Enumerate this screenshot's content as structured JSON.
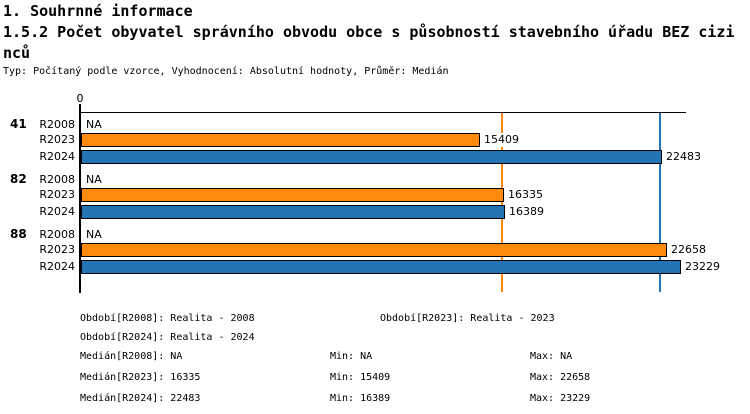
{
  "header": {
    "section_title": "1. Souhrnné informace",
    "indicator_title": "1.5.2 Počet obyvatel správního obvodu obce s působností stavebního úřadu BEZ cizinců",
    "meta": "Typ: Počítaný podle vzorce, Vyhodnocení: Absolutní hodnoty, Průměr: Medián"
  },
  "colors": {
    "orange": "#FF8A0E",
    "blue": "#2274B5",
    "axis": "#000000"
  },
  "chart_data": {
    "type": "bar",
    "orientation": "horizontal",
    "value_axis": {
      "zero_label": "0",
      "min": 0
    },
    "series_labels": [
      "R2008",
      "R2023",
      "R2024"
    ],
    "series_colors": {
      "R2008": null,
      "R2023": "#FF8A0E",
      "R2024": "#2274B5"
    },
    "groups": [
      {
        "category": "41",
        "bars": [
          {
            "series": "R2008",
            "value": null,
            "display": "NA"
          },
          {
            "series": "R2023",
            "value": 15409,
            "display": "15409"
          },
          {
            "series": "R2024",
            "value": 22483,
            "display": "22483"
          }
        ]
      },
      {
        "category": "82",
        "bars": [
          {
            "series": "R2008",
            "value": null,
            "display": "NA"
          },
          {
            "series": "R2023",
            "value": 16335,
            "display": "16335"
          },
          {
            "series": "R2024",
            "value": 16389,
            "display": "16389"
          }
        ]
      },
      {
        "category": "88",
        "bars": [
          {
            "series": "R2008",
            "value": null,
            "display": "NA"
          },
          {
            "series": "R2023",
            "value": 22658,
            "display": "22658"
          },
          {
            "series": "R2024",
            "value": 23229,
            "display": "23229"
          }
        ]
      }
    ],
    "reference_lines": [
      {
        "value": 16335,
        "color": "#FF8A0E"
      },
      {
        "value": 22483,
        "color": "#2274B5"
      }
    ]
  },
  "legend": {
    "period": [
      "Období[R2008]: Realita - 2008",
      "Období[R2023]: Realita - 2023",
      "Období[R2024]: Realita - 2024"
    ],
    "stats": [
      {
        "median": "Medián[R2008]: NA",
        "min": "Min: NA",
        "max": "Max: NA"
      },
      {
        "median": "Medián[R2023]: 16335",
        "min": "Min: 15409",
        "max": "Max: 22658"
      },
      {
        "median": "Medián[R2024]: 22483",
        "min": "Min: 16389",
        "max": "Max: 23229"
      }
    ]
  }
}
